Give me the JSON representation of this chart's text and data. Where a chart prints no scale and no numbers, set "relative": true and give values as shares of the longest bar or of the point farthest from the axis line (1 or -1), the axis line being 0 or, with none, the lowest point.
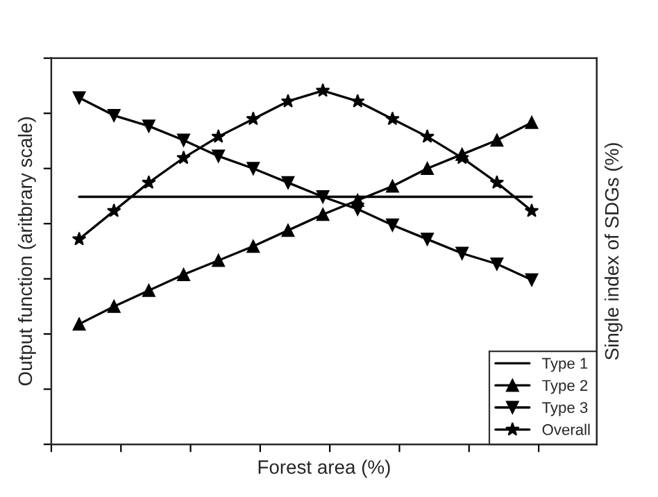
{
  "chart_data": {
    "type": "line",
    "relative": true,
    "xlabel": "Forest area (%)",
    "ylabel": "Output function (aritbrary scale)",
    "y2label": "Single index of SDGs (%)",
    "categories": [
      null,
      null,
      null,
      null,
      null,
      null,
      null,
      null,
      null,
      null,
      null,
      null,
      null,
      null
    ],
    "series": [
      {
        "name": "Type 1",
        "color": "#000000",
        "marker": "none",
        "values": [
          0.7,
          0.7,
          0.7,
          0.7,
          0.7,
          0.7,
          0.7,
          0.7,
          0.7,
          0.7,
          0.7,
          0.7,
          0.7,
          0.7
        ]
      },
      {
        "name": "Type 2",
        "color": "#000000",
        "marker": "triangle",
        "values": [
          0.34,
          0.39,
          0.435,
          0.48,
          0.52,
          0.56,
          0.605,
          0.65,
          0.69,
          0.73,
          0.78,
          0.82,
          0.86,
          0.91
        ]
      },
      {
        "name": "Type 3",
        "color": "#000000",
        "marker": "triangle_down",
        "values": [
          0.98,
          0.93,
          0.9,
          0.86,
          0.815,
          0.78,
          0.74,
          0.7,
          0.665,
          0.62,
          0.58,
          0.54,
          0.51,
          0.465
        ]
      },
      {
        "name": "Overall",
        "color": "#000000",
        "marker": "star",
        "values": [
          0.58,
          0.66,
          0.74,
          0.81,
          0.87,
          0.92,
          0.97,
          1.0,
          0.97,
          0.92,
          0.87,
          0.81,
          0.74,
          0.66
        ]
      }
    ],
    "line_style": "solid",
    "legend": "bottom right",
    "grid": false
  }
}
